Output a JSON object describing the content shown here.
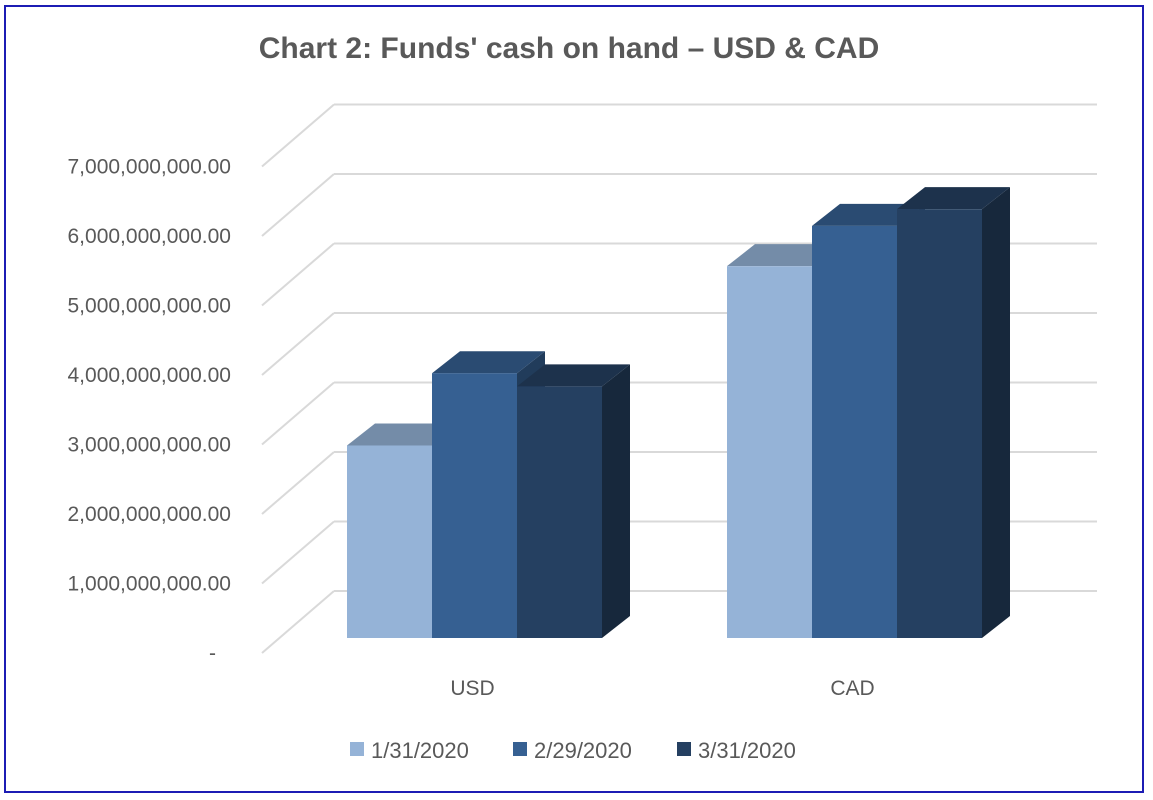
{
  "chart_data": {
    "type": "bar",
    "title": "Chart 2: Funds' cash on hand – USD & CAD",
    "xlabel": "",
    "ylabel": "",
    "categories": [
      "USD",
      "CAD"
    ],
    "series": [
      {
        "name": "1/31/2020",
        "values": [
          2770000000,
          5350000000
        ],
        "color": "#95b3d7"
      },
      {
        "name": "2/29/2020",
        "values": [
          3810000000,
          5930000000
        ],
        "color": "#366092"
      },
      {
        "name": "3/31/2020",
        "values": [
          3620000000,
          6170000000
        ],
        "color": "#254061"
      }
    ],
    "ylim": [
      0,
      7000000000
    ],
    "yticks": [
      {
        "value": 0,
        "label": "-"
      },
      {
        "value": 1000000000,
        "label": "1,000,000,000.00"
      },
      {
        "value": 2000000000,
        "label": "2,000,000,000.00"
      },
      {
        "value": 3000000000,
        "label": "3,000,000,000.00"
      },
      {
        "value": 4000000000,
        "label": "4,000,000,000.00"
      },
      {
        "value": 5000000000,
        "label": "5,000,000,000.00"
      },
      {
        "value": 6000000000,
        "label": "6,000,000,000.00"
      },
      {
        "value": 7000000000,
        "label": "7,000,000,000.00"
      }
    ],
    "grid": true,
    "style": "3d-clustered-column",
    "legend_position": "bottom",
    "frame_color": "#1c1cb4"
  }
}
